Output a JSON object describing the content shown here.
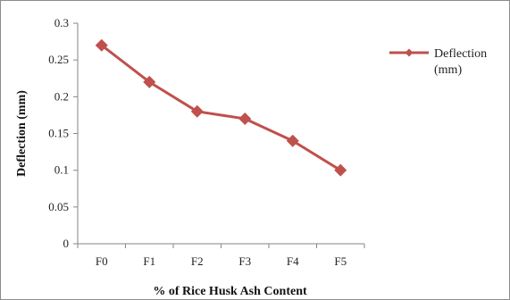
{
  "chart_data": {
    "type": "line",
    "categories": [
      "F0",
      "F1",
      "F2",
      "F3",
      "F4",
      "F5"
    ],
    "series": [
      {
        "name": "Deflection (mm)",
        "legend_lines": [
          "Deflection",
          "(mm)"
        ],
        "values": [
          0.27,
          0.22,
          0.18,
          0.17,
          0.14,
          0.1
        ],
        "color": "#c0504d",
        "marker": "diamond"
      }
    ],
    "xlabel": "% of Rice Husk Ash Content",
    "ylabel": "Deflection (mm)",
    "ylim": [
      0,
      0.3
    ],
    "yticks": [
      "0",
      "0.05",
      "0.1",
      "0.15",
      "0.2",
      "0.25",
      "0.3"
    ],
    "grid": false,
    "legend_position": "right"
  }
}
